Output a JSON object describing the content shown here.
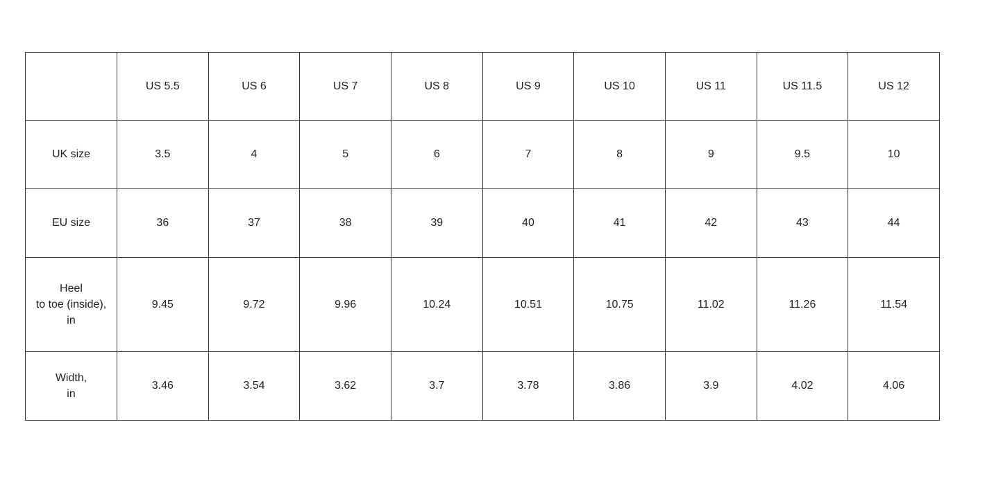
{
  "table": {
    "header": {
      "corner": "",
      "cols": [
        "US 5.5",
        "US 6",
        "US 7",
        "US 8",
        "US 9",
        "US 10",
        "US 11",
        "US 11.5",
        "US 12"
      ]
    },
    "rows": [
      {
        "label": "UK size",
        "values": [
          "3.5",
          "4",
          "5",
          "6",
          "7",
          "8",
          "9",
          "9.5",
          "10"
        ]
      },
      {
        "label": "EU size",
        "values": [
          "36",
          "37",
          "38",
          "39",
          "40",
          "41",
          "42",
          "43",
          "44"
        ]
      },
      {
        "label": "Heel\nto toe (inside),\nin",
        "values": [
          "9.45",
          "9.72",
          "9.96",
          "10.24",
          "10.51",
          "10.75",
          "11.02",
          "11.26",
          "11.54"
        ]
      },
      {
        "label": "Width,\nin",
        "values": [
          "3.46",
          "3.54",
          "3.62",
          "3.7",
          "3.78",
          "3.86",
          "3.9",
          "4.02",
          "4.06"
        ]
      }
    ],
    "border_color": "#333333",
    "text_color": "#212121",
    "background_color": "#ffffff"
  }
}
